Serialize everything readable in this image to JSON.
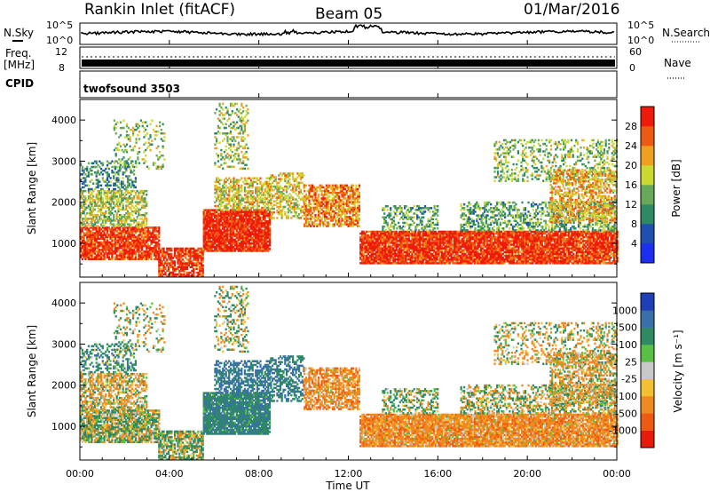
{
  "header": {
    "station": "Rankin Inlet (fitACF)",
    "beam": "Beam 05",
    "date": "01/Mar/2016"
  },
  "noise_panel": {
    "left_label": "N.Sky",
    "left_ticks": [
      "10^5",
      "10^0"
    ],
    "right_label": "N.Search",
    "right_ticks": [
      "10^5",
      "10^0"
    ]
  },
  "freq_panel": {
    "left_label_1": "Freq.",
    "left_label_2": "[MHz]",
    "left_ticks": [
      "12",
      "8"
    ],
    "right_label": "Nave",
    "right_ticks": [
      "60",
      "0"
    ]
  },
  "cpid_panel": {
    "label": "CPID",
    "program": "twofsound 3503"
  },
  "power_panel": {
    "ylabel": "Slant Range [km]",
    "colorbar_label": "Power [dB]",
    "colorbar_ticks": [
      "4",
      "8",
      "12",
      "16",
      "20",
      "24",
      "28"
    ],
    "colorbar_colors": [
      "#1c2ff0",
      "#1f4fb0",
      "#2e8a62",
      "#68a85a",
      "#c9d930",
      "#f0a020",
      "#ef5a12",
      "#ef1a0a"
    ]
  },
  "velocity_panel": {
    "ylabel": "Slant Range [km]",
    "colorbar_label": "Velocity [m s⁻¹]",
    "colorbar_ticks": [
      "1000",
      "500",
      "100",
      "25",
      "-25",
      "-100",
      "-500",
      "-1000"
    ],
    "colorbar_colors": [
      "#1f3fb8",
      "#3a70a8",
      "#2e8a62",
      "#58c044",
      "#c8c8c8",
      "#f2c030",
      "#f08a20",
      "#ef5a12",
      "#e81a0a"
    ]
  },
  "x_axis": {
    "label": "Time UT",
    "ticks": [
      "00:00",
      "04:00",
      "08:00",
      "12:00",
      "16:00",
      "20:00",
      "00:00"
    ]
  },
  "chart_data": {
    "type": "heatmap",
    "x_range_hours": [
      0,
      24
    ],
    "y_range_km": [
      180,
      4500
    ],
    "y_ticks": [
      1000,
      2000,
      3000,
      4000
    ],
    "x_ticks": [
      "00:00",
      "04:00",
      "08:00",
      "12:00",
      "16:00",
      "20:00",
      "00:00"
    ],
    "power_db_range": [
      0,
      30
    ],
    "velocity_range": [
      -1000,
      1000
    ],
    "scatter_regions": [
      {
        "t": [
          0.0,
          3.5
        ],
        "r": [
          600,
          1400
        ],
        "power_db": 27,
        "velocity": 50,
        "density": 0.85
      },
      {
        "t": [
          0.0,
          3.0
        ],
        "r": [
          1400,
          2300
        ],
        "power_db": 16,
        "velocity": -100,
        "density": 0.6
      },
      {
        "t": [
          0.0,
          2.5
        ],
        "r": [
          2300,
          3000
        ],
        "power_db": 10,
        "velocity": 300,
        "density": 0.35
      },
      {
        "t": [
          1.5,
          3.8
        ],
        "r": [
          2800,
          4000
        ],
        "power_db": 14,
        "velocity": 60,
        "density": 0.2
      },
      {
        "t": [
          3.5,
          5.5
        ],
        "r": [
          180,
          900
        ],
        "power_db": 27,
        "velocity": 80,
        "density": 0.7
      },
      {
        "t": [
          5.5,
          8.5
        ],
        "r": [
          800,
          1800
        ],
        "power_db": 28,
        "velocity": 400,
        "density": 0.9
      },
      {
        "t": [
          6.0,
          8.5
        ],
        "r": [
          1800,
          2600
        ],
        "power_db": 18,
        "velocity": 600,
        "density": 0.55
      },
      {
        "t": [
          6.0,
          7.5
        ],
        "r": [
          2800,
          4400
        ],
        "power_db": 15,
        "velocity": 50,
        "density": 0.25
      },
      {
        "t": [
          8.5,
          10.0
        ],
        "r": [
          1600,
          2700
        ],
        "power_db": 18,
        "velocity": 500,
        "density": 0.45
      },
      {
        "t": [
          10.0,
          12.5
        ],
        "r": [
          1400,
          2400
        ],
        "power_db": 22,
        "velocity": -300,
        "density": 0.7
      },
      {
        "t": [
          12.5,
          24.0
        ],
        "r": [
          500,
          1300
        ],
        "power_db": 27,
        "velocity": -300,
        "density": 0.9
      },
      {
        "t": [
          13.5,
          16.0
        ],
        "r": [
          1300,
          1900
        ],
        "power_db": 12,
        "velocity": 100,
        "density": 0.45
      },
      {
        "t": [
          17.0,
          24.0
        ],
        "r": [
          1300,
          2000
        ],
        "power_db": 12,
        "velocity": 0,
        "density": 0.45
      },
      {
        "t": [
          18.5,
          24.0
        ],
        "r": [
          2500,
          3500
        ],
        "power_db": 14,
        "velocity": -80,
        "density": 0.3
      },
      {
        "t": [
          21.0,
          24.0
        ],
        "r": [
          1500,
          2800
        ],
        "power_db": 20,
        "velocity": -150,
        "density": 0.5
      }
    ]
  }
}
